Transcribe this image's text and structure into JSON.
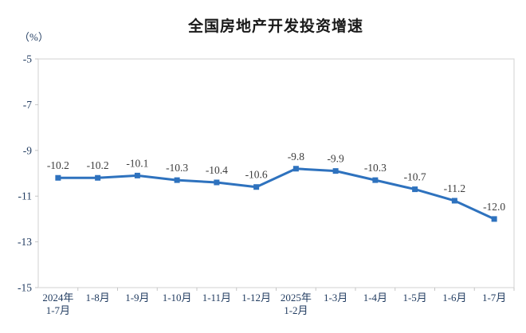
{
  "page": {
    "background": "#ffffff"
  },
  "chart_data": {
    "type": "line",
    "title": "全国房地产开发投资增速",
    "unit_label": "（%）",
    "categories": [
      "2024年\n1-7月",
      "1-8月",
      "1-9月",
      "1-10月",
      "1-11月",
      "1-12月",
      "2025年\n1-2月",
      "1-3月",
      "1-4月",
      "1-5月",
      "1-6月",
      "1-7月"
    ],
    "values": [
      -10.2,
      -10.2,
      -10.1,
      -10.3,
      -10.4,
      -10.6,
      -9.8,
      -9.9,
      -10.3,
      -10.7,
      -11.2,
      -12.0
    ],
    "data_labels": [
      "-10.2",
      "-10.2",
      "-10.1",
      "-10.3",
      "-10.4",
      "-10.6",
      "-9.8",
      "-9.9",
      "-10.3",
      "-10.7",
      "-11.2",
      "-12.0"
    ],
    "ylim": [
      -15,
      -5
    ],
    "yticks": [
      -5,
      -7,
      -9,
      -11,
      -13,
      -15
    ],
    "grid": false,
    "legend": "none",
    "line_color": "#2E72BE",
    "marker": "square",
    "axis_label_color": "#1F3A5F",
    "data_label_color": "#3D3D3D",
    "border_color": "#D9D9D9",
    "tick_color": "#C6C6C6"
  }
}
